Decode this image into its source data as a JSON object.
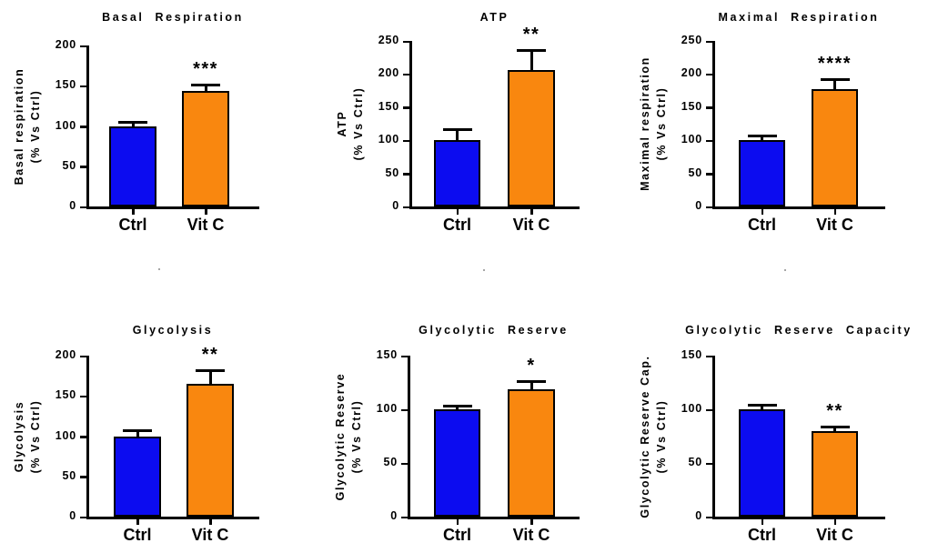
{
  "page": {
    "background": "#ffffff"
  },
  "colors": {
    "ctrl_bar": "#0C0CF0",
    "vitc_bar": "#F9870F",
    "axis": "#000000",
    "text": "#000000"
  },
  "chart_data": [
    {
      "type": "bar",
      "title": "Basal Respiration",
      "ylabel": [
        "Basal respiration",
        "(% Vs Ctrl)"
      ],
      "categories": [
        "Ctrl",
        "Vit C"
      ],
      "series": [
        {
          "name": "Ctrl",
          "value": 100,
          "error": 6,
          "color": "#0C0CF0"
        },
        {
          "name": "Vit C",
          "value": 143,
          "error": 10,
          "color": "#F9870F"
        }
      ],
      "significance": "***",
      "significance_on": "Vit C",
      "ylim": [
        0,
        200
      ],
      "yticks": [
        0,
        50,
        100,
        150,
        200
      ],
      "grid": false,
      "legend": "none"
    },
    {
      "type": "bar",
      "title": "ATP",
      "ylabel": [
        "ATP",
        "(% Vs Ctrl)"
      ],
      "categories": [
        "Ctrl",
        "Vit C"
      ],
      "series": [
        {
          "name": "Ctrl",
          "value": 100,
          "error": 18,
          "color": "#0C0CF0"
        },
        {
          "name": "Vit C",
          "value": 206,
          "error": 31,
          "color": "#F9870F"
        }
      ],
      "significance": "**",
      "significance_on": "Vit C",
      "ylim": [
        0,
        250
      ],
      "yticks": [
        0,
        50,
        100,
        150,
        200,
        250
      ],
      "grid": false,
      "legend": "none"
    },
    {
      "type": "bar",
      "title": "Maximal Respiration",
      "ylabel": [
        "Maximal respiration",
        "(% Vs Ctrl)"
      ],
      "categories": [
        "Ctrl",
        "Vit C"
      ],
      "series": [
        {
          "name": "Ctrl",
          "value": 100,
          "error": 8,
          "color": "#0C0CF0"
        },
        {
          "name": "Vit C",
          "value": 177,
          "error": 16,
          "color": "#F9870F"
        }
      ],
      "significance": "****",
      "significance_on": "Vit C",
      "ylim": [
        0,
        250
      ],
      "yticks": [
        0,
        50,
        100,
        150,
        200,
        250
      ],
      "grid": false,
      "legend": "none"
    },
    {
      "type": "bar",
      "title": "Glycolysis",
      "ylabel": [
        "Glycolysis",
        "(% Vs Ctrl)"
      ],
      "categories": [
        "Ctrl",
        "Vit C"
      ],
      "series": [
        {
          "name": "Ctrl",
          "value": 100,
          "error": 8,
          "color": "#0C0CF0"
        },
        {
          "name": "Vit C",
          "value": 165,
          "error": 18,
          "color": "#F9870F"
        }
      ],
      "significance": "**",
      "significance_on": "Vit C",
      "ylim": [
        0,
        200
      ],
      "yticks": [
        0,
        50,
        100,
        150,
        200
      ],
      "grid": false,
      "legend": "none"
    },
    {
      "type": "bar",
      "title": "Glycolytic Reserve",
      "ylabel": [
        "Glycolytic Reserve",
        "(% Vs Ctrl)"
      ],
      "categories": [
        "Ctrl",
        "Vit C"
      ],
      "series": [
        {
          "name": "Ctrl",
          "value": 100,
          "error": 4,
          "color": "#0C0CF0"
        },
        {
          "name": "Vit C",
          "value": 119,
          "error": 8,
          "color": "#F9870F"
        }
      ],
      "significance": "*",
      "significance_on": "Vit C",
      "ylim": [
        0,
        150
      ],
      "yticks": [
        0,
        50,
        100,
        150
      ],
      "grid": false,
      "legend": "none"
    },
    {
      "type": "bar",
      "title": "Glycolytic Reserve Capacity",
      "ylabel": [
        "Glycolytic Reserve Cap.",
        "(% Vs Ctrl)"
      ],
      "categories": [
        "Ctrl",
        "Vit C"
      ],
      "series": [
        {
          "name": "Ctrl",
          "value": 100,
          "error": 5,
          "color": "#0C0CF0"
        },
        {
          "name": "Vit C",
          "value": 80,
          "error": 5,
          "color": "#F9870F"
        }
      ],
      "significance": "**",
      "significance_on": "Vit C",
      "ylim": [
        0,
        150
      ],
      "yticks": [
        0,
        50,
        100,
        150
      ],
      "grid": false,
      "legend": "none"
    }
  ]
}
